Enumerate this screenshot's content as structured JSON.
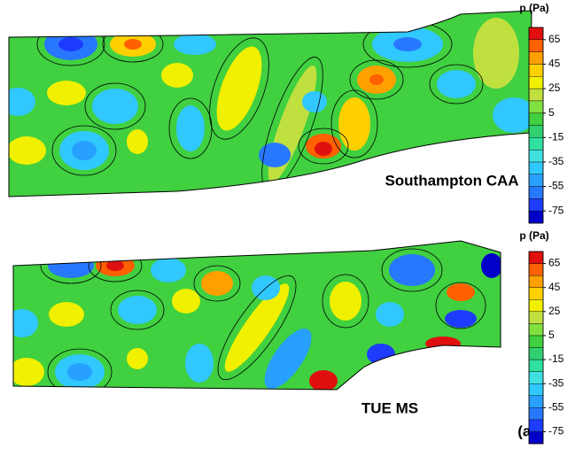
{
  "figure_label": "(a)",
  "chart_data": [
    {
      "type": "contour",
      "label": "Southampton CAA",
      "colorbar_title": "p (Pa)",
      "zlim": [
        -85,
        75
      ],
      "zticks": [
        65,
        45,
        25,
        5,
        -15,
        -35,
        -55,
        -75
      ],
      "colors": [
        "#0000c8",
        "#1e3cff",
        "#2878ff",
        "#28a0ff",
        "#30c8ff",
        "#40e0e0",
        "#30e0a0",
        "#30d070",
        "#40d040",
        "#80e040",
        "#c0e040",
        "#f0f000",
        "#ffd000",
        "#ffa000",
        "#ff6000",
        "#e01010"
      ]
    },
    {
      "type": "contour",
      "label": "TUE MS",
      "colorbar_title": "p (Pa)",
      "zlim": [
        -85,
        75
      ],
      "zticks": [
        65,
        45,
        25,
        5,
        -15,
        -35,
        -55,
        -75
      ],
      "colors": [
        "#0000c8",
        "#1e3cff",
        "#2878ff",
        "#28a0ff",
        "#30c8ff",
        "#40e0e0",
        "#30e0a0",
        "#30d070",
        "#40d040",
        "#80e040",
        "#c0e040",
        "#f0f000",
        "#ffd000",
        "#ffa000",
        "#ff6000",
        "#e01010"
      ]
    }
  ]
}
